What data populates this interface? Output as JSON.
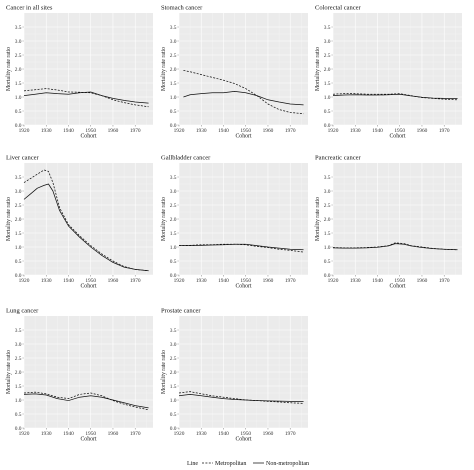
{
  "legend": {
    "title": "Line",
    "items": [
      {
        "label": "Metropolitan",
        "dash": "2,1.4"
      },
      {
        "label": "Non-metropolitan",
        "dash": ""
      }
    ]
  },
  "chart_data": [
    {
      "type": "line",
      "title": "Cancer in all sites",
      "xlabel": "Cohort",
      "ylabel": "Mortality rate ratio",
      "xlim": [
        1920,
        1978
      ],
      "ylim": [
        0,
        4
      ],
      "xticks": [
        1920,
        1930,
        1940,
        1950,
        1960,
        1970
      ],
      "yticks": [
        0.0,
        0.5,
        1.0,
        1.5,
        2.0,
        2.5,
        3.0,
        3.5
      ],
      "grid": true,
      "series": [
        {
          "name": "Metropolitan",
          "x": [
            1920,
            1925,
            1930,
            1935,
            1940,
            1945,
            1950,
            1955,
            1960,
            1965,
            1970,
            1976
          ],
          "values": [
            1.22,
            1.26,
            1.3,
            1.25,
            1.18,
            1.17,
            1.15,
            1.05,
            0.9,
            0.8,
            0.72,
            0.65
          ]
        },
        {
          "name": "Non-metropolitan",
          "x": [
            1920,
            1925,
            1930,
            1935,
            1940,
            1945,
            1950,
            1955,
            1960,
            1965,
            1970,
            1976
          ],
          "values": [
            1.05,
            1.1,
            1.15,
            1.12,
            1.1,
            1.15,
            1.18,
            1.05,
            0.95,
            0.88,
            0.82,
            0.78
          ]
        }
      ]
    },
    {
      "type": "line",
      "title": "Stomach cancer",
      "xlabel": "Cohort",
      "ylabel": "Mortality rate ratio",
      "xlim": [
        1920,
        1978
      ],
      "ylim": [
        0,
        4
      ],
      "xticks": [
        1920,
        1930,
        1940,
        1950,
        1960,
        1970
      ],
      "yticks": [
        0.0,
        0.5,
        1.0,
        1.5,
        2.0,
        2.5,
        3.0,
        3.5
      ],
      "grid": true,
      "series": [
        {
          "name": "Metropolitan",
          "x": [
            1922,
            1925,
            1930,
            1935,
            1940,
            1945,
            1950,
            1955,
            1960,
            1965,
            1970,
            1976
          ],
          "values": [
            1.95,
            1.9,
            1.8,
            1.7,
            1.6,
            1.48,
            1.3,
            1.05,
            0.75,
            0.55,
            0.45,
            0.4
          ]
        },
        {
          "name": "Non-metropolitan",
          "x": [
            1922,
            1925,
            1930,
            1935,
            1940,
            1945,
            1950,
            1955,
            1960,
            1965,
            1970,
            1976
          ],
          "values": [
            1.0,
            1.08,
            1.12,
            1.15,
            1.15,
            1.2,
            1.15,
            1.05,
            0.9,
            0.82,
            0.75,
            0.72
          ]
        }
      ]
    },
    {
      "type": "line",
      "title": "Colorectal cancer",
      "xlabel": "Cohort",
      "ylabel": "Mortality rate ratio",
      "xlim": [
        1920,
        1978
      ],
      "ylim": [
        0,
        4
      ],
      "xticks": [
        1920,
        1930,
        1940,
        1950,
        1960,
        1970
      ],
      "yticks": [
        0.0,
        0.5,
        1.0,
        1.5,
        2.0,
        2.5,
        3.0,
        3.5
      ],
      "grid": true,
      "series": [
        {
          "name": "Metropolitan",
          "x": [
            1920,
            1925,
            1930,
            1935,
            1940,
            1945,
            1950,
            1955,
            1960,
            1965,
            1970,
            1976
          ],
          "values": [
            1.1,
            1.12,
            1.12,
            1.1,
            1.1,
            1.1,
            1.12,
            1.05,
            0.98,
            0.95,
            0.92,
            0.9
          ]
        },
        {
          "name": "Non-metropolitan",
          "x": [
            1920,
            1925,
            1930,
            1935,
            1940,
            1945,
            1950,
            1955,
            1960,
            1965,
            1970,
            1976
          ],
          "values": [
            1.05,
            1.07,
            1.08,
            1.07,
            1.07,
            1.08,
            1.1,
            1.04,
            0.99,
            0.96,
            0.95,
            0.95
          ]
        }
      ]
    },
    {
      "type": "line",
      "title": "Liver cancer",
      "xlabel": "Cohort",
      "ylabel": "Mortality rate ratio",
      "xlim": [
        1920,
        1978
      ],
      "ylim": [
        0,
        4
      ],
      "xticks": [
        1920,
        1930,
        1940,
        1950,
        1960,
        1970
      ],
      "yticks": [
        0.0,
        0.5,
        1.0,
        1.5,
        2.0,
        2.5,
        3.0,
        3.5
      ],
      "grid": true,
      "series": [
        {
          "name": "Metropolitan",
          "x": [
            1920,
            1923,
            1926,
            1929,
            1931,
            1933,
            1936,
            1940,
            1945,
            1950,
            1955,
            1960,
            1965,
            1970,
            1976
          ],
          "values": [
            3.3,
            3.45,
            3.6,
            3.75,
            3.7,
            3.3,
            2.4,
            1.8,
            1.4,
            1.05,
            0.75,
            0.5,
            0.3,
            0.2,
            0.15
          ]
        },
        {
          "name": "Non-metropolitan",
          "x": [
            1920,
            1923,
            1926,
            1929,
            1931,
            1933,
            1936,
            1940,
            1945,
            1950,
            1955,
            1960,
            1965,
            1970,
            1976
          ],
          "values": [
            2.7,
            2.9,
            3.1,
            3.2,
            3.25,
            3.0,
            2.3,
            1.75,
            1.35,
            1.0,
            0.7,
            0.45,
            0.28,
            0.2,
            0.15
          ]
        }
      ]
    },
    {
      "type": "line",
      "title": "Gallbladder cancer",
      "xlabel": "Cohort",
      "ylabel": "Mortality rate ratio",
      "xlim": [
        1920,
        1978
      ],
      "ylim": [
        0,
        4
      ],
      "xticks": [
        1920,
        1930,
        1940,
        1950,
        1960,
        1970
      ],
      "yticks": [
        0.0,
        0.5,
        1.0,
        1.5,
        2.0,
        2.5,
        3.0,
        3.5
      ],
      "grid": true,
      "series": [
        {
          "name": "Metropolitan",
          "x": [
            1920,
            1925,
            1930,
            1935,
            1940,
            1945,
            1950,
            1955,
            1960,
            1965,
            1970,
            1976
          ],
          "values": [
            1.05,
            1.06,
            1.08,
            1.08,
            1.1,
            1.1,
            1.08,
            1.02,
            0.98,
            0.92,
            0.88,
            0.82
          ]
        },
        {
          "name": "Non-metropolitan",
          "x": [
            1920,
            1925,
            1930,
            1935,
            1940,
            1945,
            1950,
            1955,
            1960,
            1965,
            1970,
            1976
          ],
          "values": [
            1.05,
            1.05,
            1.06,
            1.07,
            1.08,
            1.1,
            1.1,
            1.05,
            1.0,
            0.96,
            0.92,
            0.9
          ]
        }
      ]
    },
    {
      "type": "line",
      "title": "Pancreatic cancer",
      "xlabel": "Cohort",
      "ylabel": "Mortality rate ratio",
      "xlim": [
        1920,
        1978
      ],
      "ylim": [
        0,
        4
      ],
      "xticks": [
        1920,
        1930,
        1940,
        1950,
        1960,
        1970
      ],
      "yticks": [
        0.0,
        0.5,
        1.0,
        1.5,
        2.0,
        2.5,
        3.0,
        3.5
      ],
      "grid": true,
      "series": [
        {
          "name": "Metropolitan",
          "x": [
            1920,
            1925,
            1930,
            1935,
            1940,
            1945,
            1948,
            1952,
            1955,
            1960,
            1965,
            1970,
            1976
          ],
          "values": [
            0.98,
            0.97,
            0.97,
            0.98,
            1.0,
            1.05,
            1.15,
            1.12,
            1.05,
            1.0,
            0.95,
            0.92,
            0.9
          ]
        },
        {
          "name": "Non-metropolitan",
          "x": [
            1920,
            1925,
            1930,
            1935,
            1940,
            1945,
            1948,
            1952,
            1955,
            1960,
            1965,
            1970,
            1976
          ],
          "values": [
            0.97,
            0.96,
            0.96,
            0.97,
            0.99,
            1.04,
            1.12,
            1.1,
            1.04,
            0.98,
            0.94,
            0.92,
            0.9
          ]
        }
      ]
    },
    {
      "type": "line",
      "title": "Lung cancer",
      "xlabel": "Cohort",
      "ylabel": "Mortality rate ratio",
      "xlim": [
        1920,
        1978
      ],
      "ylim": [
        0,
        4
      ],
      "xticks": [
        1920,
        1930,
        1940,
        1950,
        1960,
        1970
      ],
      "yticks": [
        0.0,
        0.5,
        1.0,
        1.5,
        2.0,
        2.5,
        3.0,
        3.5
      ],
      "grid": true,
      "series": [
        {
          "name": "Metropolitan",
          "x": [
            1920,
            1925,
            1930,
            1935,
            1940,
            1945,
            1950,
            1955,
            1960,
            1965,
            1970,
            1976
          ],
          "values": [
            1.25,
            1.28,
            1.22,
            1.1,
            1.05,
            1.2,
            1.25,
            1.15,
            0.98,
            0.85,
            0.75,
            0.65
          ]
        },
        {
          "name": "Non-metropolitan",
          "x": [
            1920,
            1925,
            1930,
            1935,
            1940,
            1945,
            1950,
            1955,
            1960,
            1965,
            1970,
            1976
          ],
          "values": [
            1.2,
            1.22,
            1.18,
            1.05,
            0.98,
            1.1,
            1.15,
            1.1,
            1.0,
            0.9,
            0.8,
            0.72
          ]
        }
      ]
    },
    {
      "type": "line",
      "title": "Prostate cancer",
      "xlabel": "Cohort",
      "ylabel": "Mortality rate ratio",
      "xlim": [
        1920,
        1978
      ],
      "ylim": [
        0,
        4
      ],
      "xticks": [
        1920,
        1930,
        1940,
        1950,
        1960,
        1970
      ],
      "yticks": [
        0.0,
        0.5,
        1.0,
        1.5,
        2.0,
        2.5,
        3.0,
        3.5
      ],
      "grid": true,
      "series": [
        {
          "name": "Metropolitan",
          "x": [
            1920,
            1925,
            1930,
            1935,
            1940,
            1945,
            1950,
            1955,
            1960,
            1965,
            1970,
            1976
          ],
          "values": [
            1.25,
            1.3,
            1.22,
            1.15,
            1.1,
            1.05,
            1.0,
            0.98,
            0.95,
            0.93,
            0.9,
            0.88
          ]
        },
        {
          "name": "Non-metropolitan",
          "x": [
            1920,
            1925,
            1930,
            1935,
            1940,
            1945,
            1950,
            1955,
            1960,
            1965,
            1970,
            1976
          ],
          "values": [
            1.15,
            1.2,
            1.15,
            1.1,
            1.05,
            1.02,
            1.0,
            0.98,
            0.97,
            0.96,
            0.95,
            0.95
          ]
        }
      ]
    }
  ]
}
